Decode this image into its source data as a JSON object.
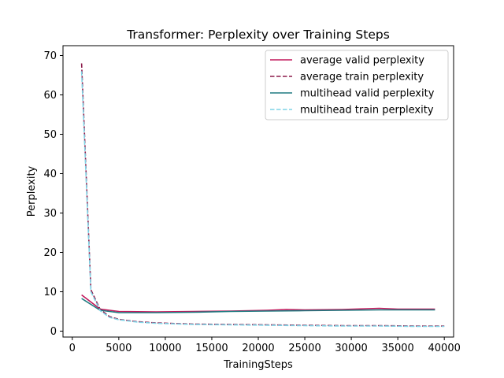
{
  "chart_data": {
    "type": "line",
    "title": "Transformer: Perplexity over Training Steps",
    "xlabel": "TrainingSteps",
    "ylabel": "Perplexity",
    "xlim": [
      -1000,
      41000
    ],
    "ylim": [
      -1.5,
      72.5
    ],
    "xticks": [
      0,
      5000,
      10000,
      15000,
      20000,
      25000,
      30000,
      35000,
      40000
    ],
    "xtick_labels": [
      "0",
      "5000",
      "10000",
      "15000",
      "20000",
      "25000",
      "30000",
      "35000",
      "40000"
    ],
    "yticks": [
      0,
      10,
      20,
      30,
      40,
      50,
      60,
      70
    ],
    "ytick_labels": [
      "0",
      "10",
      "20",
      "30",
      "40",
      "50",
      "60",
      "70"
    ],
    "grid": false,
    "legend_position": "top-right",
    "series": [
      {
        "name": "average valid perplexity",
        "color": "#c2185b",
        "style": "solid",
        "x": [
          1000,
          3000,
          5000,
          9000,
          13000,
          17000,
          19000,
          21000,
          23000,
          25000,
          29000,
          33000,
          35000,
          39000
        ],
        "y": [
          9.2,
          5.6,
          5.0,
          4.9,
          5.0,
          5.1,
          5.2,
          5.3,
          5.5,
          5.4,
          5.5,
          5.8,
          5.6,
          5.6
        ]
      },
      {
        "name": "average train perplexity",
        "color": "#8b1a4a",
        "style": "dashed",
        "x": [
          1000,
          2000,
          3000,
          4000,
          5000,
          7000,
          9000,
          13000,
          17000,
          21000,
          25000,
          29000,
          33000,
          37000,
          40000
        ],
        "y": [
          68.0,
          10.5,
          5.5,
          3.7,
          3.0,
          2.4,
          2.1,
          1.8,
          1.7,
          1.6,
          1.5,
          1.4,
          1.4,
          1.3,
          1.3
        ]
      },
      {
        "name": "multihead valid perplexity",
        "color": "#1f7a80",
        "style": "solid",
        "x": [
          1000,
          3000,
          5000,
          9000,
          13000,
          17000,
          21000,
          25000,
          29000,
          33000,
          37000,
          39000
        ],
        "y": [
          8.3,
          5.3,
          4.7,
          4.7,
          4.8,
          5.0,
          5.1,
          5.2,
          5.3,
          5.4,
          5.4,
          5.4
        ]
      },
      {
        "name": "multihead train perplexity",
        "color": "#7fd3e6",
        "style": "dashed",
        "x": [
          1000,
          2000,
          3000,
          4000,
          5000,
          7000,
          9000,
          13000,
          17000,
          21000,
          25000,
          29000,
          33000,
          37000,
          40000
        ],
        "y": [
          66.0,
          10.0,
          5.2,
          3.5,
          2.9,
          2.3,
          2.0,
          1.7,
          1.6,
          1.5,
          1.4,
          1.3,
          1.3,
          1.2,
          1.2
        ]
      }
    ]
  }
}
